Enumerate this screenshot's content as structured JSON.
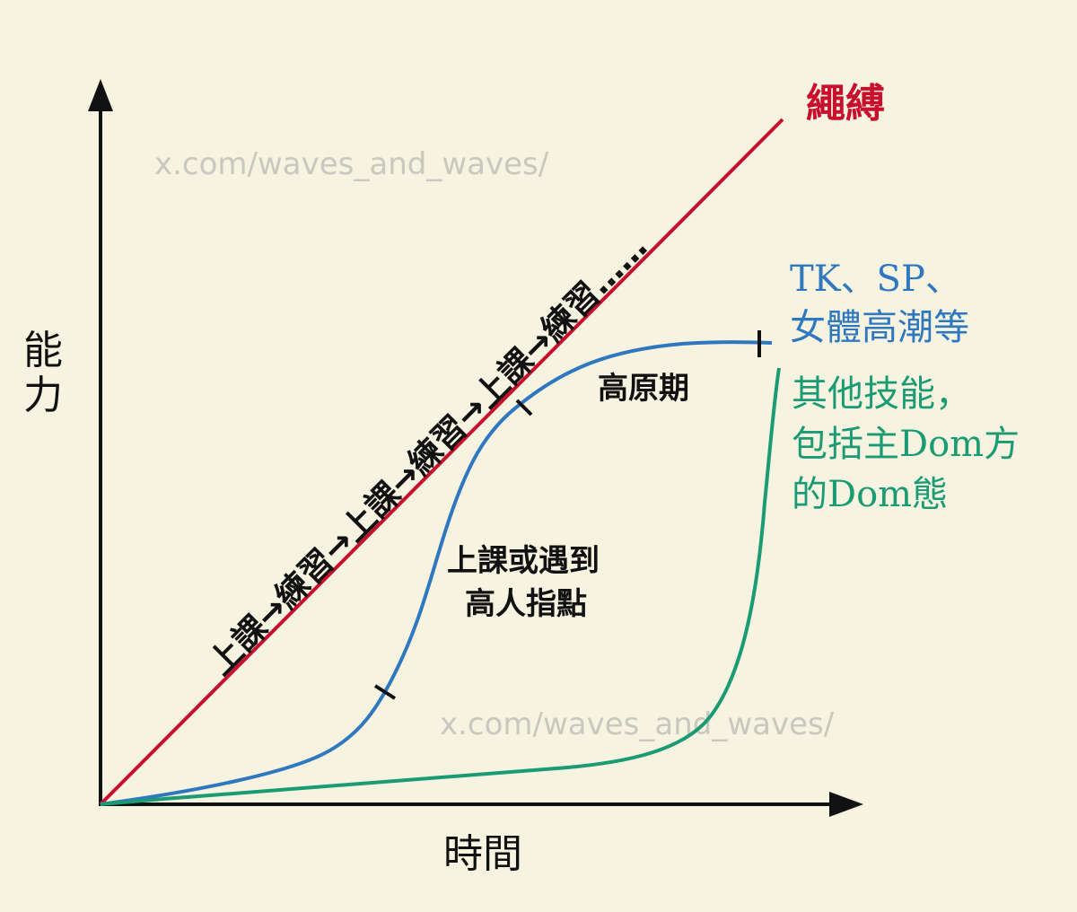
{
  "axes": {
    "y_label": "能力",
    "x_label": "時間"
  },
  "watermarks": [
    "x.com/waves_and_waves/",
    "x.com/waves_and_waves/"
  ],
  "lines": {
    "rope": {
      "label": "繩縛",
      "color": "#c8102e",
      "diagonal_text": "上課→練習→上課→練習→上課→練習……"
    },
    "tk_sp": {
      "label_lines": [
        "TK、SP、",
        "女體高潮等"
      ],
      "color": "#2f78c0",
      "annotations": {
        "middle_phase": [
          "上課或遇到",
          "高人指點"
        ],
        "plateau": "高原期"
      }
    },
    "other_skills": {
      "label_lines": [
        "其他技能，",
        "包括主Dom方",
        "的Dom態"
      ],
      "color": "#1a9b73"
    }
  },
  "colors": {
    "background": "#f6f3e1",
    "axis": "#111111",
    "watermark": "#c9c8bf"
  }
}
